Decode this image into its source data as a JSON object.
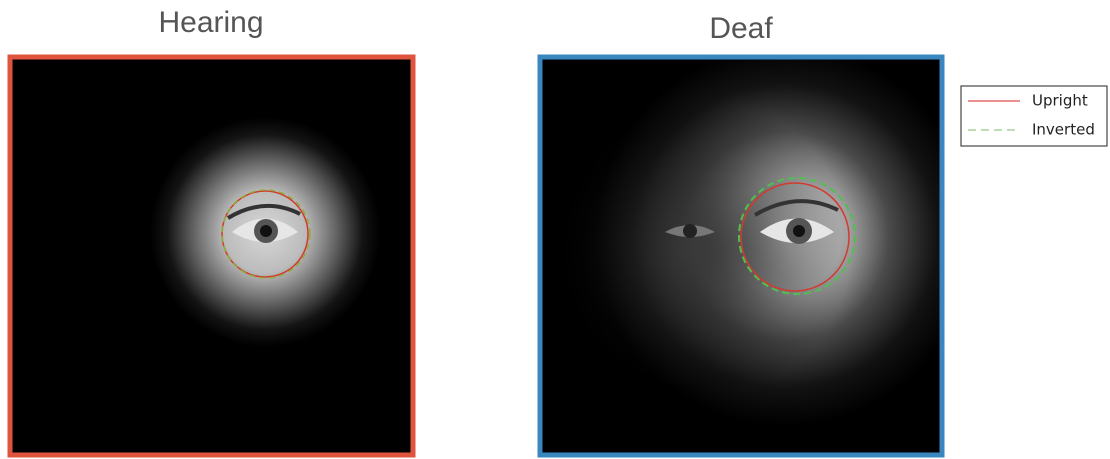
{
  "panels": [
    {
      "title": "Hearing"
    },
    {
      "title": "Deaf"
    }
  ],
  "legend": {
    "items": [
      {
        "label": "Upright"
      },
      {
        "label": "Inverted"
      }
    ]
  }
}
